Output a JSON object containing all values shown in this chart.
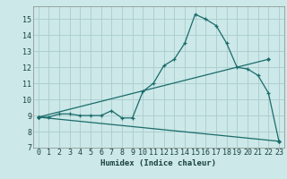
{
  "xlabel": "Humidex (Indice chaleur)",
  "bg_color": "#cce8e8",
  "grid_color": "#aacccc",
  "line_color": "#1a6b6b",
  "xlim": [
    -0.5,
    23.5
  ],
  "ylim": [
    7,
    15.8
  ],
  "xticks": [
    0,
    1,
    2,
    3,
    4,
    5,
    6,
    7,
    8,
    9,
    10,
    11,
    12,
    13,
    14,
    15,
    16,
    17,
    18,
    19,
    20,
    21,
    22,
    23
  ],
  "yticks": [
    7,
    8,
    9,
    10,
    11,
    12,
    13,
    14,
    15
  ],
  "line1_x": [
    0,
    1,
    2,
    3,
    4,
    5,
    6,
    7,
    8,
    9,
    10,
    11,
    12,
    13,
    14,
    15,
    16,
    17,
    18,
    19,
    20,
    21,
    22,
    23
  ],
  "line1_y": [
    8.9,
    8.9,
    9.1,
    9.1,
    9.0,
    9.0,
    9.0,
    9.3,
    8.85,
    8.85,
    10.5,
    11.0,
    12.1,
    12.5,
    13.5,
    15.3,
    15.0,
    14.6,
    13.5,
    12.0,
    11.9,
    11.5,
    10.4,
    7.4
  ],
  "line2_x": [
    0,
    22
  ],
  "line2_y": [
    8.9,
    12.5
  ],
  "line3_x": [
    0,
    23
  ],
  "line3_y": [
    8.9,
    7.4
  ]
}
